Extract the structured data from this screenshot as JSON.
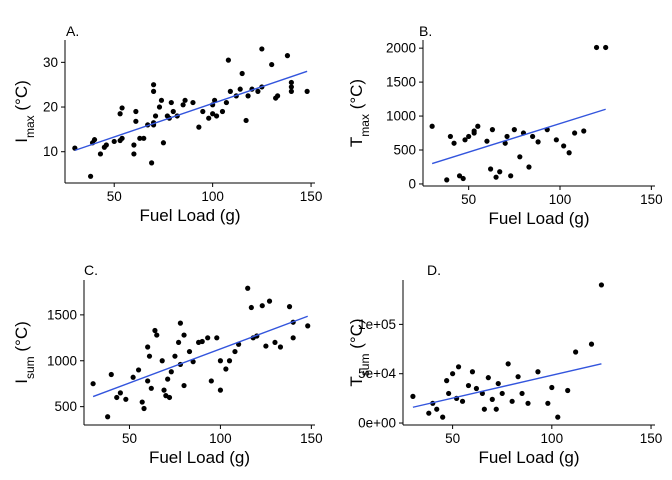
{
  "chart_data": [
    {
      "type": "scatter",
      "panel_label": "A.",
      "xlabel": "Fuel Load (g)",
      "ylabel_main": "I",
      "ylabel_sub": "max",
      "ylabel_unit": " (°C)",
      "xlim": [
        25,
        152
      ],
      "ylim": [
        3,
        35
      ],
      "xticks": [
        50,
        100,
        150
      ],
      "xtick_labels": [
        "50",
        "100",
        "150"
      ],
      "yticks": [
        10,
        20,
        30
      ],
      "ytick_labels": [
        "10",
        "20",
        "30"
      ],
      "fit_line": {
        "x": [
          30,
          148
        ],
        "y": [
          10.3,
          28.0
        ]
      },
      "points": {
        "x": [
          30,
          38,
          39,
          40,
          43,
          45,
          46,
          50,
          53,
          53,
          54,
          54,
          60,
          60,
          61,
          61,
          63,
          65,
          67,
          69,
          70,
          70,
          70,
          70,
          71,
          73,
          74,
          75,
          77,
          78,
          79,
          80,
          82,
          85,
          86,
          90,
          93,
          95,
          98,
          100,
          100,
          101,
          102,
          105,
          107,
          108,
          109,
          112,
          114,
          115,
          117,
          118,
          120,
          123,
          125,
          125,
          130,
          132,
          133,
          138,
          140,
          140,
          140,
          148
        ],
        "y": [
          10.8,
          4.5,
          12.0,
          12.7,
          9.5,
          11.0,
          11.5,
          12.3,
          12.5,
          18.5,
          19.8,
          13.0,
          9.5,
          11.5,
          16.8,
          19.0,
          13.0,
          13.0,
          16.0,
          7.5,
          16.0,
          16.5,
          23.5,
          25.0,
          18.0,
          20.0,
          21.5,
          12.0,
          18.0,
          17.5,
          21.0,
          19.0,
          18.0,
          20.5,
          21.5,
          21.0,
          15.5,
          19.0,
          17.5,
          18.5,
          20.5,
          21.5,
          18.0,
          19.0,
          21.0,
          30.5,
          23.5,
          22.5,
          24.0,
          27.5,
          17.0,
          22.5,
          24.0,
          23.5,
          24.5,
          33.0,
          29.5,
          22.0,
          22.5,
          31.5,
          24.5,
          25.5,
          23.5,
          23.5
        ]
      }
    },
    {
      "type": "scatter",
      "panel_label": "B.",
      "xlabel": "Fuel Load (g)",
      "ylabel_main": "T",
      "ylabel_sub": "max",
      "ylabel_unit": " (°C)",
      "xlim": [
        25,
        152
      ],
      "ylim": [
        -30,
        2120
      ],
      "xticks": [
        50,
        100,
        150
      ],
      "xtick_labels": [
        "50",
        "100",
        "150"
      ],
      "yticks": [
        0,
        500,
        1000,
        1500,
        2000
      ],
      "ytick_labels": [
        "0",
        "500",
        "1000",
        "1500",
        "2000"
      ],
      "fit_line": {
        "x": [
          30,
          125
        ],
        "y": [
          300,
          1100
        ]
      },
      "points": {
        "x": [
          30,
          38,
          40,
          42,
          45,
          47,
          48,
          50,
          53,
          53,
          55,
          60,
          62,
          63,
          65,
          67,
          70,
          71,
          73,
          75,
          78,
          80,
          83,
          85,
          88,
          93,
          98,
          102,
          105,
          108,
          113,
          120,
          125
        ],
        "y": [
          850,
          60,
          700,
          600,
          120,
          80,
          650,
          700,
          750,
          780,
          850,
          630,
          220,
          800,
          100,
          180,
          600,
          700,
          120,
          800,
          400,
          750,
          250,
          700,
          620,
          800,
          650,
          560,
          460,
          750,
          780,
          2010,
          2010
        ]
      }
    },
    {
      "type": "scatter",
      "panel_label": "C.",
      "xlabel": "Fuel Load (g)",
      "ylabel_main": "I",
      "ylabel_sub": "sum",
      "ylabel_unit": " (°C)",
      "xlim": [
        25,
        152
      ],
      "ylim": [
        300,
        1880
      ],
      "xticks": [
        50,
        100,
        150
      ],
      "xtick_labels": [
        "50",
        "100",
        "150"
      ],
      "yticks": [
        500,
        1000,
        1500
      ],
      "ytick_labels": [
        "500",
        "1000",
        "1500"
      ],
      "fit_line": {
        "x": [
          30,
          148
        ],
        "y": [
          610,
          1485
        ]
      },
      "points": {
        "x": [
          30,
          38,
          40,
          43,
          45,
          48,
          52,
          55,
          57,
          58,
          60,
          60,
          61,
          62,
          64,
          65,
          68,
          69,
          70,
          71,
          72,
          73,
          75,
          77,
          78,
          78,
          80,
          80,
          83,
          85,
          88,
          90,
          93,
          95,
          98,
          100,
          100,
          103,
          105,
          108,
          110,
          115,
          117,
          118,
          120,
          123,
          125,
          127,
          130,
          133,
          138,
          140,
          140,
          148
        ],
        "y": [
          750,
          390,
          850,
          600,
          650,
          580,
          820,
          900,
          550,
          480,
          1150,
          780,
          1050,
          700,
          1330,
          1280,
          1000,
          680,
          620,
          800,
          600,
          880,
          1050,
          1200,
          960,
          1410,
          1280,
          730,
          1100,
          990,
          1200,
          1210,
          1250,
          780,
          1250,
          1000,
          680,
          910,
          1000,
          1100,
          1180,
          1790,
          1580,
          1250,
          1270,
          1600,
          1160,
          1650,
          1200,
          1150,
          1590,
          1250,
          1420,
          1380
        ]
      }
    },
    {
      "type": "scatter",
      "panel_label": "D.",
      "xlabel": "Fuel Load (g)",
      "ylabel_main": "T",
      "ylabel_sub": "sum",
      "ylabel_unit": " (°C)",
      "xlim": [
        25,
        152
      ],
      "ylim": [
        -2000,
        145000
      ],
      "xticks": [
        50,
        100,
        150
      ],
      "xtick_labels": [
        "50",
        "100",
        "150"
      ],
      "yticks": [
        0,
        50000,
        100000
      ],
      "ytick_labels": [
        "0e+00",
        "5e+04",
        "1e+05"
      ],
      "fit_line": {
        "x": [
          30,
          125
        ],
        "y": [
          16000,
          60000
        ]
      },
      "points": {
        "x": [
          30,
          38,
          40,
          42,
          45,
          47,
          48,
          50,
          52,
          53,
          55,
          58,
          60,
          62,
          65,
          66,
          68,
          70,
          72,
          73,
          75,
          78,
          80,
          83,
          85,
          88,
          93,
          98,
          100,
          103,
          108,
          112,
          120,
          125
        ],
        "y": [
          27000,
          10000,
          20000,
          14000,
          6000,
          43000,
          30000,
          50000,
          25000,
          57000,
          22000,
          38000,
          52000,
          35000,
          30000,
          14000,
          46000,
          24000,
          14000,
          40000,
          30000,
          60000,
          22000,
          47000,
          30000,
          20000,
          52000,
          20000,
          36000,
          6000,
          33000,
          72000,
          80000,
          140000
        ]
      }
    }
  ]
}
